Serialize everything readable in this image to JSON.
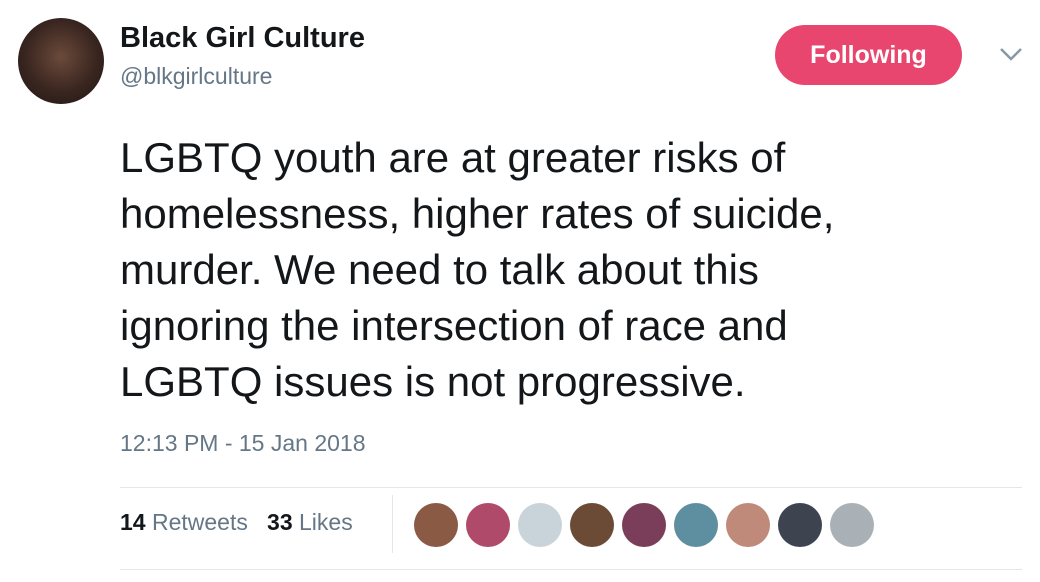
{
  "author": {
    "name": "Black Girl Culture",
    "handle": "@blkgirlculture"
  },
  "follow_button": "Following",
  "text_lines": [
    "LGBTQ youth are at greater risks of",
    "homelessness, higher rates of suicide,",
    "murder. We need to talk about this",
    "ignoring the intersection of race and",
    "LGBTQ issues is not progressive."
  ],
  "timestamp": "12:13 PM - 15 Jan 2018",
  "stats": {
    "retweets": 14,
    "retweets_label": "Retweets",
    "likes": 33,
    "likes_label": "Likes"
  }
}
